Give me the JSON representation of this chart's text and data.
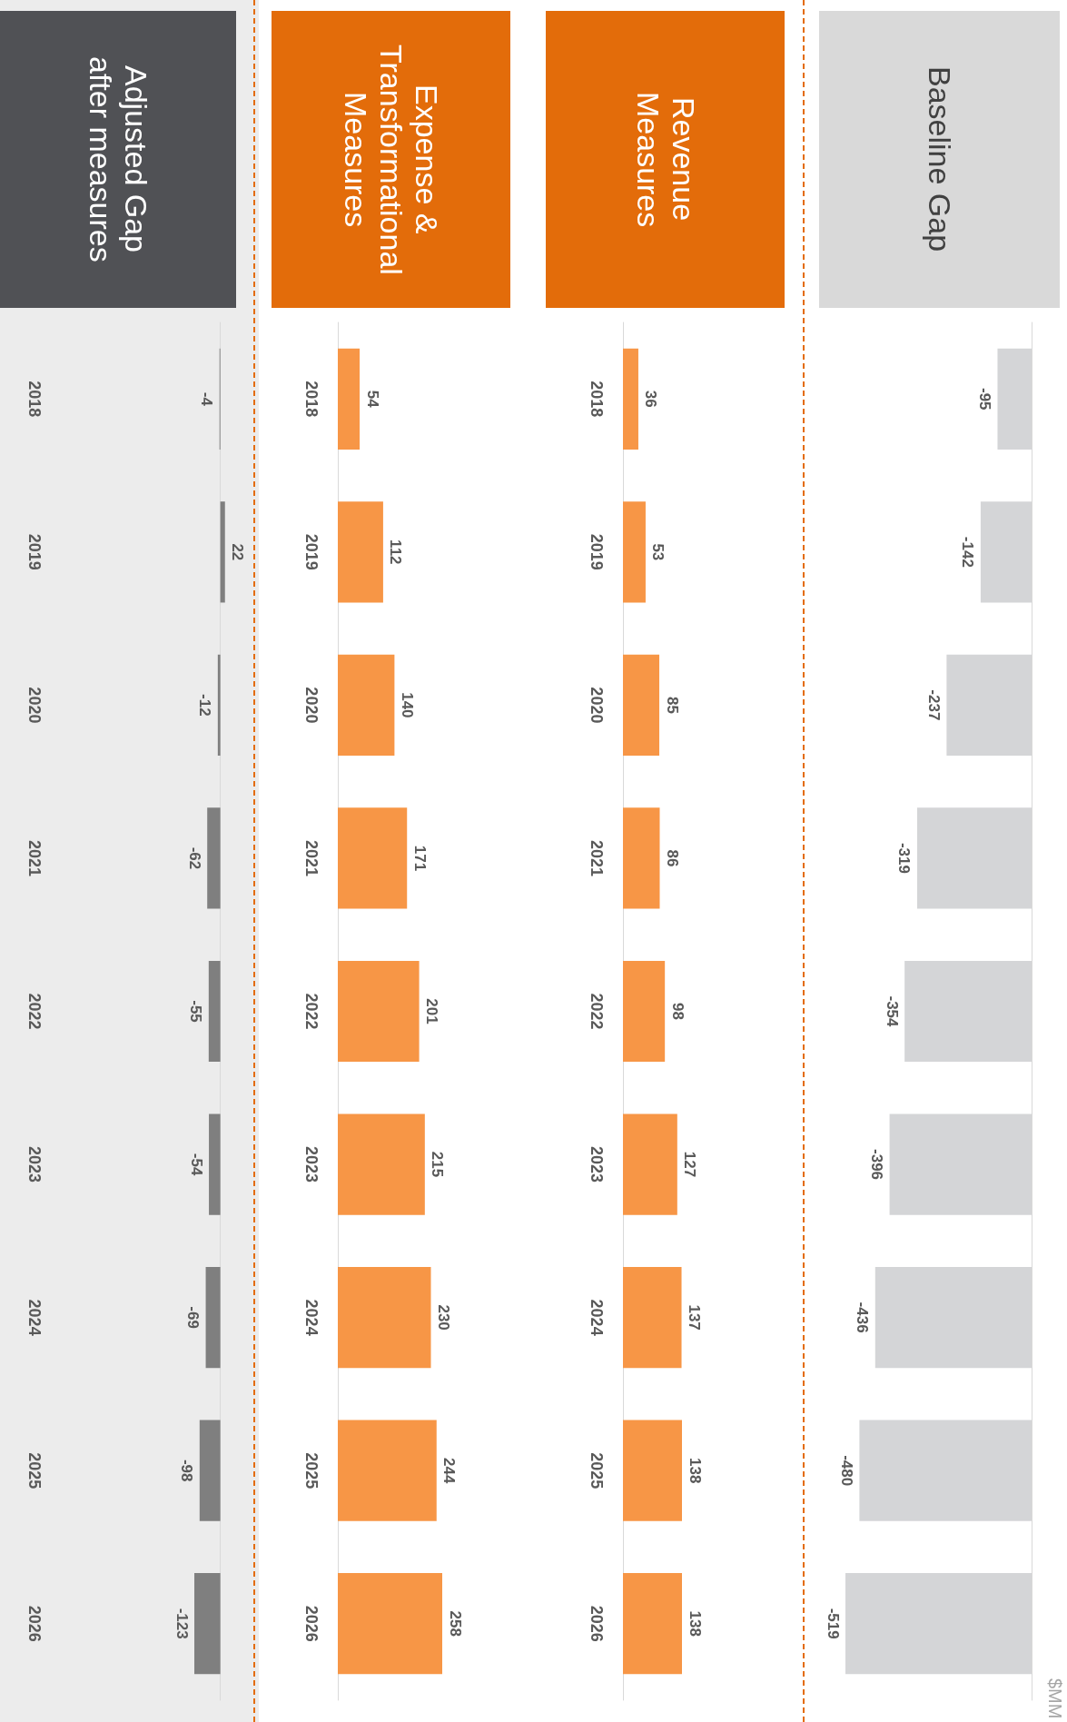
{
  "chart_data": [
    {
      "type": "bar",
      "orientation": "horizontal",
      "title": "Baseline Gap",
      "categories": [
        "2018",
        "2019",
        "2020",
        "2021",
        "2022",
        "2023",
        "2024",
        "2025",
        "2026"
      ],
      "tick_labels": false,
      "values": [
        -95,
        -142,
        -237,
        -319,
        -354,
        -396,
        -436,
        -480,
        -519
      ],
      "color": "#d4d5d7",
      "data_labels": true,
      "annotations": [
        "$MM"
      ]
    },
    {
      "type": "bar",
      "orientation": "horizontal",
      "title": "Revenue Measures",
      "categories": [
        "2018",
        "2019",
        "2020",
        "2021",
        "2022",
        "2023",
        "2024",
        "2025",
        "2026"
      ],
      "values": [
        36,
        53,
        85,
        86,
        98,
        127,
        137,
        138,
        138
      ],
      "color": "#f79646",
      "data_labels": true
    },
    {
      "type": "bar",
      "orientation": "horizontal",
      "title": "Expense & Transformational Measures",
      "categories": [
        "2018",
        "2019",
        "2020",
        "2021",
        "2022",
        "2023",
        "2024",
        "2025",
        "2026"
      ],
      "values": [
        54,
        112,
        140,
        171,
        201,
        215,
        230,
        244,
        258
      ],
      "color": "#f79646",
      "data_labels": true
    },
    {
      "type": "bar",
      "orientation": "horizontal",
      "title": "Adjusted Gap after measures",
      "categories": [
        "2018",
        "2019",
        "2020",
        "2021",
        "2022",
        "2023",
        "2024",
        "2025",
        "2026"
      ],
      "values": [
        -4,
        22,
        -12,
        -62,
        -55,
        -54,
        -69,
        -98,
        -123
      ],
      "color": "#7f7f7f",
      "data_labels": true
    }
  ]
}
